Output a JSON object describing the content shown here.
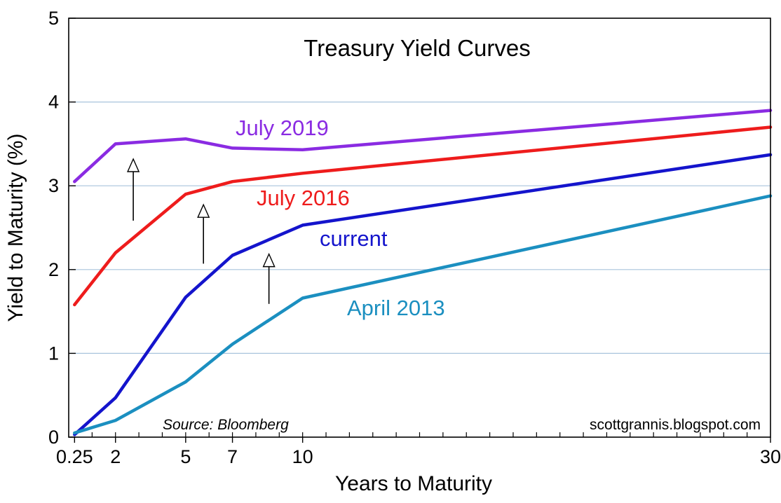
{
  "chart_data": {
    "type": "line",
    "title": "Treasury Yield Curves",
    "xlabel": "Years to Maturity",
    "ylabel": "Yield to Maturity (%)",
    "xlim": [
      0,
      30
    ],
    "ylim": [
      0,
      5
    ],
    "x_ticks": [
      {
        "value": 0.25,
        "label": "0.25"
      },
      {
        "value": 2,
        "label": "2"
      },
      {
        "value": 5,
        "label": "5"
      },
      {
        "value": 7,
        "label": "7"
      },
      {
        "value": 10,
        "label": "10"
      },
      {
        "value": 30,
        "label": "30"
      }
    ],
    "y_ticks": [
      {
        "value": 0,
        "label": "0"
      },
      {
        "value": 1,
        "label": "1"
      },
      {
        "value": 2,
        "label": "2"
      },
      {
        "value": 3,
        "label": "3"
      },
      {
        "value": 4,
        "label": "4"
      },
      {
        "value": 5,
        "label": "5"
      }
    ],
    "grid": "horizontal",
    "x": [
      0.25,
      2,
      5,
      7,
      10,
      30
    ],
    "series": [
      {
        "name": "July 2019",
        "color": "#8a2be2",
        "values": [
          3.05,
          3.5,
          3.56,
          3.45,
          3.43,
          3.9
        ]
      },
      {
        "name": "July 2016",
        "color": "#ee1c1c",
        "values": [
          1.58,
          2.2,
          2.9,
          3.05,
          3.15,
          3.7
        ]
      },
      {
        "name": "current",
        "color": "#1414cc",
        "values": [
          0.03,
          0.47,
          1.67,
          2.17,
          2.53,
          3.37
        ]
      },
      {
        "name": "April 2013",
        "color": "#1b8fc0",
        "values": [
          0.05,
          0.2,
          0.66,
          1.11,
          1.66,
          2.88
        ]
      }
    ],
    "annotations": {
      "source": "Source:  Bloomberg",
      "credit": "scottgrannis.blogspot.com",
      "arrow_count": 3
    }
  }
}
